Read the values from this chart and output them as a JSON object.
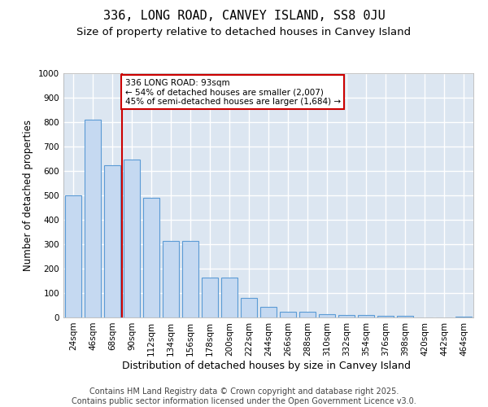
{
  "title1": "336, LONG ROAD, CANVEY ISLAND, SS8 0JU",
  "title2": "Size of property relative to detached houses in Canvey Island",
  "xlabel": "Distribution of detached houses by size in Canvey Island",
  "ylabel": "Number of detached properties",
  "categories": [
    "24sqm",
    "46sqm",
    "68sqm",
    "90sqm",
    "112sqm",
    "134sqm",
    "156sqm",
    "178sqm",
    "200sqm",
    "222sqm",
    "244sqm",
    "266sqm",
    "288sqm",
    "310sqm",
    "332sqm",
    "354sqm",
    "376sqm",
    "398sqm",
    "420sqm",
    "442sqm",
    "464sqm"
  ],
  "values": [
    500,
    810,
    625,
    648,
    490,
    315,
    315,
    163,
    163,
    80,
    45,
    22,
    22,
    12,
    10,
    10,
    6,
    6,
    0,
    0,
    5
  ],
  "bar_color": "#c5d9f1",
  "bar_edge_color": "#5b9bd5",
  "vline_color": "#cc0000",
  "vline_x": 2.5,
  "annotation_text": "336 LONG ROAD: 93sqm\n← 54% of detached houses are smaller (2,007)\n45% of semi-detached houses are larger (1,684) →",
  "annotation_box_edgecolor": "#cc0000",
  "ylim_max": 1000,
  "yticks": [
    0,
    100,
    200,
    300,
    400,
    500,
    600,
    700,
    800,
    900,
    1000
  ],
  "background_color": "#dce6f1",
  "grid_color": "#ffffff",
  "footer": "Contains HM Land Registry data © Crown copyright and database right 2025.\nContains public sector information licensed under the Open Government Licence v3.0.",
  "title1_fontsize": 11,
  "title2_fontsize": 9.5,
  "xlabel_fontsize": 9,
  "ylabel_fontsize": 8.5,
  "tick_fontsize": 7.5,
  "annotation_fontsize": 7.5,
  "footer_fontsize": 7
}
